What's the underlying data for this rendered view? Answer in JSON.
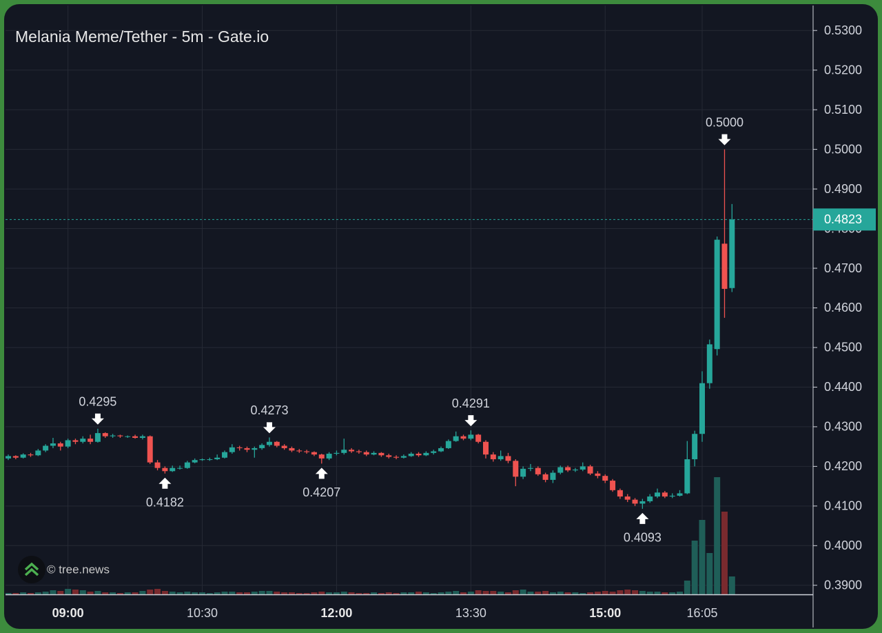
{
  "chart_data": {
    "type": "candlestick",
    "title": "Melania Meme/Tether - 5m - Gate.io",
    "watermark": "© tree.news",
    "x": [
      "08:20",
      "08:25",
      "08:30",
      "08:35",
      "08:40",
      "08:45",
      "08:50",
      "08:55",
      "09:00",
      "09:05",
      "09:10",
      "09:15",
      "09:20",
      "09:25",
      "09:30",
      "09:35",
      "09:40",
      "09:45",
      "09:50",
      "09:55",
      "10:00",
      "10:05",
      "10:10",
      "10:15",
      "10:20",
      "10:25",
      "10:30",
      "10:35",
      "10:40",
      "10:45",
      "10:50",
      "10:55",
      "11:00",
      "11:05",
      "11:10",
      "11:15",
      "11:20",
      "11:25",
      "11:30",
      "11:35",
      "11:40",
      "11:45",
      "11:50",
      "11:55",
      "12:00",
      "12:05",
      "12:10",
      "12:15",
      "12:20",
      "12:25",
      "12:30",
      "12:35",
      "12:40",
      "12:45",
      "12:50",
      "12:55",
      "13:00",
      "13:05",
      "13:10",
      "13:15",
      "13:20",
      "13:25",
      "13:30",
      "13:35",
      "13:40",
      "13:45",
      "13:50",
      "13:55",
      "14:00",
      "14:05",
      "14:10",
      "14:15",
      "14:20",
      "14:25",
      "14:30",
      "14:35",
      "14:40",
      "14:45",
      "14:50",
      "14:55",
      "15:00",
      "15:05",
      "15:10",
      "15:15",
      "15:20",
      "15:25",
      "15:30",
      "15:35",
      "15:40",
      "15:45",
      "15:50",
      "15:55",
      "16:00",
      "16:05",
      "16:10",
      "16:15",
      "16:20",
      "16:25"
    ],
    "open": [
      0.422,
      0.4226,
      0.4222,
      0.423,
      0.4228,
      0.424,
      0.4252,
      0.4258,
      0.425,
      0.4266,
      0.4262,
      0.427,
      0.4262,
      0.4284,
      0.4276,
      0.4278,
      0.4276,
      0.4276,
      0.4272,
      0.4276,
      0.421,
      0.4196,
      0.4188,
      0.4196,
      0.4196,
      0.421,
      0.4216,
      0.4218,
      0.4218,
      0.4222,
      0.4236,
      0.4248,
      0.4246,
      0.4242,
      0.4246,
      0.4254,
      0.4262,
      0.4252,
      0.4246,
      0.424,
      0.4238,
      0.4236,
      0.423,
      0.422,
      0.4232,
      0.4234,
      0.4242,
      0.4238,
      0.4236,
      0.423,
      0.4234,
      0.4228,
      0.4224,
      0.4222,
      0.4226,
      0.4232,
      0.4228,
      0.4234,
      0.4238,
      0.4246,
      0.4264,
      0.4276,
      0.427,
      0.428,
      0.4262,
      0.423,
      0.4218,
      0.4226,
      0.4214,
      0.4174,
      0.4194,
      0.4196,
      0.418,
      0.4166,
      0.4184,
      0.4198,
      0.419,
      0.4192,
      0.42,
      0.4182,
      0.4176,
      0.4164,
      0.414,
      0.4124,
      0.4116,
      0.4106,
      0.4112,
      0.4124,
      0.4134,
      0.4124,
      0.4126,
      0.4132,
      0.4218,
      0.4282,
      0.441,
      0.4496,
      0.4762,
      0.465
    ],
    "high": [
      0.423,
      0.4228,
      0.4233,
      0.4234,
      0.4244,
      0.4256,
      0.4272,
      0.4262,
      0.427,
      0.427,
      0.4276,
      0.428,
      0.4295,
      0.4286,
      0.4282,
      0.428,
      0.4278,
      0.428,
      0.428,
      0.4278,
      0.4216,
      0.42,
      0.4202,
      0.4202,
      0.4214,
      0.422,
      0.422,
      0.4222,
      0.423,
      0.424,
      0.4256,
      0.4252,
      0.425,
      0.425,
      0.4258,
      0.4273,
      0.4264,
      0.4256,
      0.425,
      0.4244,
      0.4242,
      0.4238,
      0.4232,
      0.4236,
      0.424,
      0.427,
      0.4246,
      0.4242,
      0.424,
      0.4238,
      0.4236,
      0.4232,
      0.4228,
      0.423,
      0.4236,
      0.4236,
      0.4238,
      0.4242,
      0.425,
      0.4268,
      0.4288,
      0.428,
      0.4291,
      0.4282,
      0.4266,
      0.4236,
      0.424,
      0.4234,
      0.4218,
      0.42,
      0.4206,
      0.42,
      0.4184,
      0.419,
      0.4202,
      0.4202,
      0.4196,
      0.421,
      0.4204,
      0.4188,
      0.418,
      0.4168,
      0.4144,
      0.413,
      0.412,
      0.4118,
      0.413,
      0.4144,
      0.4138,
      0.4132,
      0.414,
      0.4264,
      0.429,
      0.444,
      0.452,
      0.478,
      0.5,
      0.4862
    ],
    "low": [
      0.4216,
      0.4218,
      0.422,
      0.4224,
      0.4226,
      0.4236,
      0.4246,
      0.424,
      0.4246,
      0.4256,
      0.4258,
      0.4256,
      0.426,
      0.4272,
      0.4272,
      0.4272,
      0.4272,
      0.427,
      0.4268,
      0.4206,
      0.419,
      0.4182,
      0.4186,
      0.4192,
      0.4194,
      0.4208,
      0.4214,
      0.4214,
      0.4216,
      0.422,
      0.4232,
      0.424,
      0.4236,
      0.4222,
      0.4242,
      0.425,
      0.4248,
      0.4242,
      0.4236,
      0.4234,
      0.4232,
      0.4226,
      0.4207,
      0.4216,
      0.4228,
      0.423,
      0.4234,
      0.4232,
      0.4226,
      0.4228,
      0.4224,
      0.422,
      0.4218,
      0.422,
      0.4224,
      0.4224,
      0.4226,
      0.423,
      0.4236,
      0.4244,
      0.4262,
      0.4266,
      0.4266,
      0.4258,
      0.422,
      0.4212,
      0.4214,
      0.4208,
      0.415,
      0.4168,
      0.4188,
      0.4176,
      0.416,
      0.4158,
      0.418,
      0.4186,
      0.4186,
      0.4188,
      0.4178,
      0.417,
      0.4158,
      0.4136,
      0.4118,
      0.411,
      0.41,
      0.4093,
      0.4108,
      0.412,
      0.412,
      0.412,
      0.4124,
      0.413,
      0.42,
      0.4262,
      0.4396,
      0.448,
      0.4575,
      0.464
    ],
    "close": [
      0.4226,
      0.4222,
      0.423,
      0.4228,
      0.424,
      0.4252,
      0.4258,
      0.425,
      0.4266,
      0.4262,
      0.427,
      0.4262,
      0.4284,
      0.4276,
      0.4278,
      0.4276,
      0.4276,
      0.4272,
      0.4276,
      0.421,
      0.4196,
      0.4188,
      0.4196,
      0.4196,
      0.421,
      0.4216,
      0.4218,
      0.4218,
      0.4222,
      0.4236,
      0.4248,
      0.4246,
      0.4242,
      0.4246,
      0.4254,
      0.4262,
      0.4252,
      0.4246,
      0.424,
      0.4238,
      0.4236,
      0.423,
      0.422,
      0.4232,
      0.4234,
      0.4242,
      0.4238,
      0.4236,
      0.423,
      0.4234,
      0.4228,
      0.4224,
      0.4222,
      0.4226,
      0.4232,
      0.4228,
      0.4234,
      0.4238,
      0.4246,
      0.4264,
      0.4276,
      0.427,
      0.428,
      0.4262,
      0.423,
      0.4218,
      0.4226,
      0.4214,
      0.4174,
      0.4194,
      0.4196,
      0.418,
      0.4166,
      0.4184,
      0.4198,
      0.419,
      0.4192,
      0.42,
      0.4182,
      0.4176,
      0.4164,
      0.414,
      0.4124,
      0.4116,
      0.4106,
      0.4112,
      0.4124,
      0.4134,
      0.4124,
      0.4126,
      0.4132,
      0.4218,
      0.4282,
      0.441,
      0.4508,
      0.4772,
      0.4648,
      0.4823
    ],
    "volume": [
      2,
      2,
      3,
      2,
      3,
      4,
      6,
      5,
      8,
      7,
      6,
      4,
      5,
      3,
      3,
      2,
      3,
      3,
      5,
      7,
      8,
      5,
      4,
      3,
      4,
      3,
      3,
      2,
      3,
      4,
      4,
      3,
      3,
      4,
      5,
      5,
      4,
      3,
      3,
      2,
      2,
      3,
      4,
      3,
      3,
      4,
      3,
      2,
      2,
      3,
      2,
      3,
      2,
      3,
      3,
      4,
      3,
      2,
      3,
      4,
      5,
      3,
      4,
      6,
      5,
      5,
      4,
      3,
      6,
      7,
      4,
      4,
      5,
      3,
      4,
      3,
      3,
      2,
      3,
      4,
      5,
      4,
      6,
      7,
      6,
      5,
      4,
      4,
      3,
      3,
      4,
      20,
      78,
      108,
      60,
      170,
      120,
      26
    ],
    "up_color": "#26a69a",
    "down_color": "#ef5350",
    "up_volume_color": "#1f5e58",
    "down_volume_color": "#7a2a2e",
    "ylim": [
      0.3877,
      0.5363
    ],
    "yticks": [
      {
        "value": 0.39,
        "label": "0.3900"
      },
      {
        "value": 0.4,
        "label": "0.4000"
      },
      {
        "value": 0.41,
        "label": "0.4100"
      },
      {
        "value": 0.42,
        "label": "0.4200"
      },
      {
        "value": 0.43,
        "label": "0.4300"
      },
      {
        "value": 0.44,
        "label": "0.4400"
      },
      {
        "value": 0.45,
        "label": "0.4500"
      },
      {
        "value": 0.46,
        "label": "0.4600"
      },
      {
        "value": 0.47,
        "label": "0.4700"
      },
      {
        "value": 0.48,
        "label": "0.4800"
      },
      {
        "value": 0.49,
        "label": "0.4900"
      },
      {
        "value": 0.5,
        "label": "0.5000"
      },
      {
        "value": 0.51,
        "label": "0.5100"
      },
      {
        "value": 0.52,
        "label": "0.5200"
      },
      {
        "value": 0.53,
        "label": "0.5300"
      }
    ],
    "xticks": [
      "09:00",
      "10:30",
      "12:00",
      "13:30",
      "15:00",
      "16:05"
    ],
    "xticks_bold": [
      true,
      false,
      true,
      false,
      true,
      false
    ],
    "grid": true,
    "markers": [
      {
        "x": "09:20",
        "side": "high",
        "price": {
          "value": 0.4295,
          "label": "0.4295"
        }
      },
      {
        "x": "10:05",
        "side": "low",
        "price": {
          "value": 0.4182,
          "label": "0.4182"
        }
      },
      {
        "x": "11:15",
        "side": "high",
        "price": {
          "value": 0.4273,
          "label": "0.4273"
        }
      },
      {
        "x": "11:50",
        "side": "low",
        "price": {
          "value": 0.4207,
          "label": "0.4207"
        }
      },
      {
        "x": "13:30",
        "side": "high",
        "price": {
          "value": 0.4291,
          "label": "0.4291"
        }
      },
      {
        "x": "15:25",
        "side": "low",
        "price": {
          "value": 0.4093,
          "label": "0.4093"
        }
      },
      {
        "x": "16:20",
        "side": "high",
        "price": {
          "value": 0.5,
          "label": "0.5000"
        }
      }
    ],
    "last_price": {
      "value": 0.4823,
      "label": "0.4823"
    }
  }
}
